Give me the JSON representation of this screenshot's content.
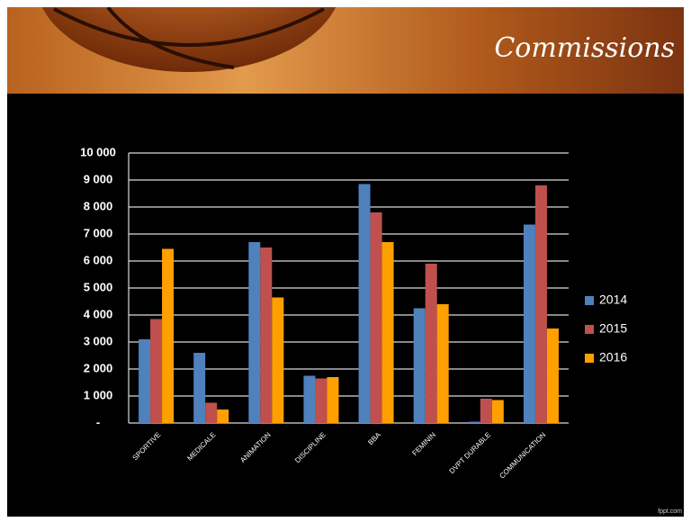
{
  "header": {
    "title": "Commissions"
  },
  "footer": "fppt.com",
  "chart_data": {
    "type": "bar",
    "categories": [
      "SPORTIVE",
      "MEDICALE",
      "ANIMATION",
      "DISCIPLINE",
      "BBA",
      "FEMININ",
      "DVPT DURABLE",
      "COMMUNICATION"
    ],
    "series": [
      {
        "name": "2014",
        "color": "#4f81bd",
        "values": [
          3100,
          2600,
          6700,
          1750,
          8850,
          4250,
          50,
          7350
        ]
      },
      {
        "name": "2015",
        "color": "#c0504d",
        "values": [
          3850,
          750,
          6500,
          1650,
          7800,
          5900,
          900,
          8800
        ]
      },
      {
        "name": "2016",
        "color": "#ffa000",
        "values": [
          6450,
          500,
          4650,
          1700,
          6700,
          4400,
          850,
          3500
        ]
      }
    ],
    "ylim": [
      0,
      10000
    ],
    "yticks": [
      {
        "value": 0,
        "label": "-"
      },
      {
        "value": 1000,
        "label": "1 000"
      },
      {
        "value": 2000,
        "label": "2 000"
      },
      {
        "value": 3000,
        "label": "3 000"
      },
      {
        "value": 4000,
        "label": "4 000"
      },
      {
        "value": 5000,
        "label": "5 000"
      },
      {
        "value": 6000,
        "label": "6 000"
      },
      {
        "value": 7000,
        "label": "7 000"
      },
      {
        "value": 8000,
        "label": "8 000"
      },
      {
        "value": 9000,
        "label": "9 000"
      },
      {
        "value": 10000,
        "label": "10 000"
      }
    ],
    "grid": true,
    "legend": "right"
  }
}
